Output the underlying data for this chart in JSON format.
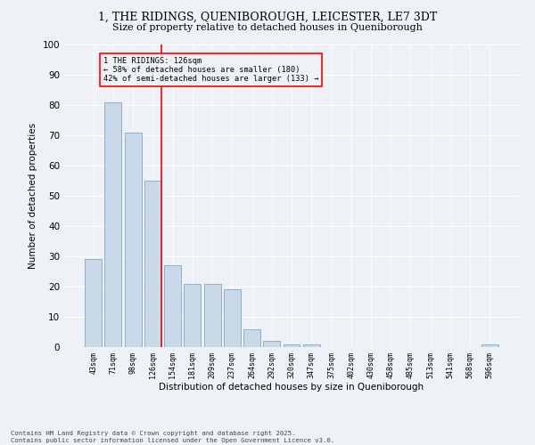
{
  "title1": "1, THE RIDINGS, QUENIBOROUGH, LEICESTER, LE7 3DT",
  "title2": "Size of property relative to detached houses in Queniborough",
  "xlabel": "Distribution of detached houses by size in Queniborough",
  "ylabel": "Number of detached properties",
  "categories": [
    "43sqm",
    "71sqm",
    "98sqm",
    "126sqm",
    "154sqm",
    "181sqm",
    "209sqm",
    "237sqm",
    "264sqm",
    "292sqm",
    "320sqm",
    "347sqm",
    "375sqm",
    "402sqm",
    "430sqm",
    "458sqm",
    "485sqm",
    "513sqm",
    "541sqm",
    "568sqm",
    "596sqm"
  ],
  "values": [
    29,
    81,
    71,
    55,
    27,
    21,
    21,
    19,
    6,
    2,
    1,
    1,
    0,
    0,
    0,
    0,
    0,
    0,
    0,
    0,
    1
  ],
  "bar_color": "#c9d9ea",
  "bar_edge_color": "#7fa8c8",
  "red_line_index": 3,
  "annotation_title": "1 THE RIDINGS: 126sqm",
  "annotation_line1": "← 58% of detached houses are smaller (180)",
  "annotation_line2": "42% of semi-detached houses are larger (133) →",
  "ylim": [
    0,
    100
  ],
  "yticks": [
    0,
    10,
    20,
    30,
    40,
    50,
    60,
    70,
    80,
    90,
    100
  ],
  "footer1": "Contains HM Land Registry data © Crown copyright and database right 2025.",
  "footer2": "Contains public sector information licensed under the Open Government Licence v3.0.",
  "bg_color": "#eef2f7"
}
